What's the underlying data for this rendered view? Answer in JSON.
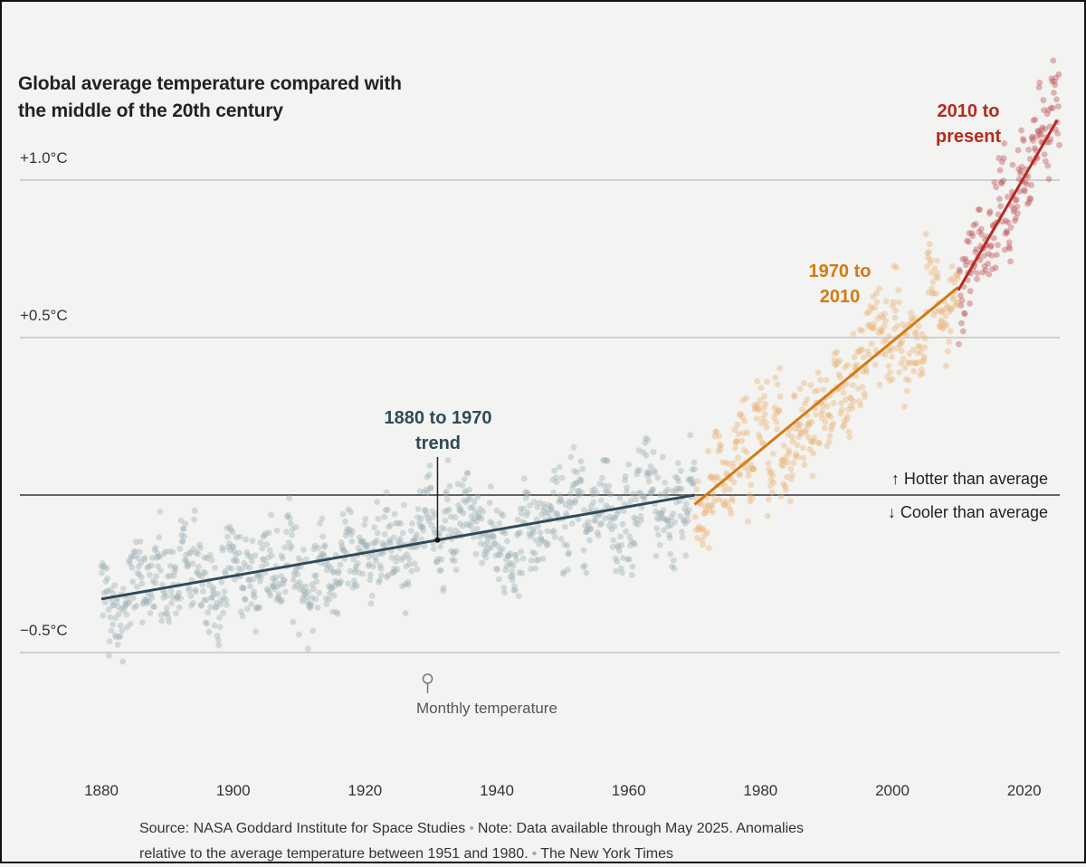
{
  "chart_data": {
    "type": "scatter",
    "title": "Global average temperature compared with the middle of the 20th century",
    "xlabel": "",
    "ylabel": "",
    "xlim": [
      1880,
      2025.4
    ],
    "ylim": [
      -0.8,
      1.1
    ],
    "x_ticks": [
      1880,
      1900,
      1920,
      1940,
      1960,
      1980,
      2000,
      2020
    ],
    "x_tick_labels": [
      "1880",
      "1900",
      "1920",
      "1940",
      "1960",
      "1980",
      "2000",
      "2020"
    ],
    "y_gridlines": [
      {
        "value": 1.0,
        "label": "+1.0°C"
      },
      {
        "value": 0.5,
        "label": "+0.5°C"
      },
      {
        "value": 0.0,
        "label": ""
      },
      {
        "value": -0.5,
        "label": "−0.5°C"
      }
    ],
    "series": [
      {
        "segment": "1880 to 1970 trend",
        "years": [
          1880,
          1970
        ],
        "color": "#9fb3b8",
        "trend_start": -0.33,
        "trend_end": 0.0
      },
      {
        "segment": "1970 to 2010",
        "years": [
          1970,
          2010
        ],
        "color": "#eab57a",
        "trend_start": -0.03,
        "trend_end": 0.66
      },
      {
        "segment": "2010 to present",
        "years": [
          2010,
          2025.4
        ],
        "color": "#c2555a",
        "trend_start": 0.65,
        "trend_end": 1.19
      }
    ],
    "trend_lines": [
      {
        "label": "1880 to 1970 trend",
        "x": [
          1880,
          1970
        ],
        "y": [
          -0.33,
          0.0
        ],
        "color": "#2f4b5a"
      },
      {
        "label": "1970 to 2010",
        "x": [
          1970,
          2010
        ],
        "y": [
          -0.03,
          0.66
        ],
        "color": "#d47a14"
      },
      {
        "label": "2010 to present",
        "x": [
          2010,
          2025
        ],
        "y": [
          0.65,
          1.19
        ],
        "color": "#b52a1e"
      }
    ],
    "annotations": {
      "trend_1880": "1880 to 1970 trend",
      "trend_1970": "1970 to 2010",
      "trend_2010": "2010 to present",
      "hotter": "↑ Hotter than average",
      "cooler": "↓ Cooler than average",
      "monthly": "Monthly temperature"
    },
    "grid": true,
    "legend": "none"
  },
  "source_line1": "Source: NASA Goddard Institute for Space Studies",
  "note_line1": "Note: Data available through May 2025. Anomalies",
  "note_line2": "relative to the average temperature between 1951 and 1980.",
  "credit": "The New York Times"
}
